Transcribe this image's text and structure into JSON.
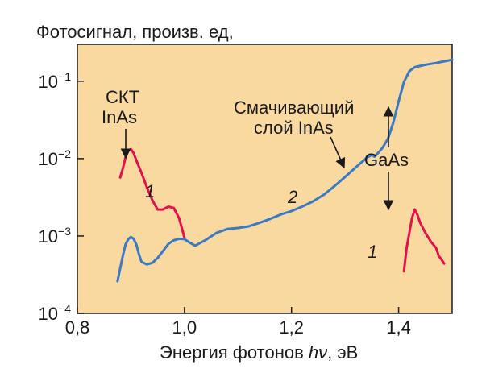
{
  "chart_data": {
    "type": "line",
    "title": "",
    "ylabel": "Фотосигнал, произв. ед,",
    "xlabel": {
      "prefix": "Энергия фотонов ",
      "symbol": "hν",
      "suffix": ", эВ"
    },
    "xlim": [
      0.8,
      1.5
    ],
    "ylim": [
      0.0001,
      0.3
    ],
    "yscale": "log",
    "grid": false,
    "x_ticks": [
      {
        "value": 0.8,
        "label": "0,8"
      },
      {
        "value": 1.0,
        "label": "1,0"
      },
      {
        "value": 1.2,
        "label": "1,2"
      },
      {
        "value": 1.4,
        "label": "1,4"
      }
    ],
    "y_ticks": [
      {
        "value": 0.0001,
        "base": "10",
        "exp": "−4"
      },
      {
        "value": 0.001,
        "base": "10",
        "exp": "−3"
      },
      {
        "value": 0.01,
        "base": "10",
        "exp": "−2"
      },
      {
        "value": 0.1,
        "base": "10",
        "exp": "−1"
      }
    ],
    "colors": {
      "background": "#f9d9a0",
      "series_1": "#e5124a",
      "series_2": "#3a7ac4",
      "axis": "#1a1a1a"
    },
    "series": [
      {
        "name": "1",
        "x": [
          0.88,
          0.885,
          0.89,
          0.895,
          0.9,
          0.905,
          0.91,
          0.92,
          0.93,
          0.94,
          0.95,
          0.96,
          0.97,
          0.98,
          0.99,
          1.0
        ],
        "y": [
          0.0057,
          0.0075,
          0.0105,
          0.0128,
          0.0132,
          0.0118,
          0.0095,
          0.0065,
          0.0042,
          0.0029,
          0.0022,
          0.0022,
          0.0024,
          0.0023,
          0.0017,
          0.00095
        ]
      },
      {
        "name": "1",
        "x": [
          1.41,
          1.415,
          1.42,
          1.425,
          1.43,
          1.435,
          1.44,
          1.45,
          1.46,
          1.47,
          1.475,
          1.48,
          1.485
        ],
        "y": [
          0.00035,
          0.0007,
          0.0011,
          0.0017,
          0.0022,
          0.0019,
          0.0015,
          0.0011,
          0.00085,
          0.0007,
          0.00055,
          0.0005,
          0.00044
        ]
      },
      {
        "name": "2",
        "x": [
          0.875,
          0.88,
          0.885,
          0.89,
          0.895,
          0.9,
          0.905,
          0.91,
          0.915,
          0.92,
          0.93,
          0.94,
          0.95,
          0.96,
          0.97,
          0.98,
          0.99,
          1.0,
          1.01,
          1.02,
          1.04,
          1.06,
          1.08,
          1.1,
          1.12,
          1.14,
          1.16,
          1.18,
          1.2,
          1.22,
          1.24,
          1.26,
          1.28,
          1.3,
          1.32,
          1.34,
          1.35,
          1.355,
          1.36,
          1.37,
          1.38,
          1.39,
          1.4,
          1.41,
          1.42,
          1.43,
          1.45,
          1.47,
          1.5
        ],
        "y": [
          0.00026,
          0.00038,
          0.00056,
          0.00078,
          0.00091,
          0.00097,
          0.00092,
          0.00078,
          0.00058,
          0.00046,
          0.00043,
          0.00045,
          0.00052,
          0.00064,
          0.00079,
          0.00088,
          0.00092,
          0.00091,
          0.00082,
          0.00075,
          0.00089,
          0.0011,
          0.00123,
          0.00127,
          0.00133,
          0.00148,
          0.00166,
          0.0019,
          0.0021,
          0.0024,
          0.0028,
          0.0034,
          0.0044,
          0.0058,
          0.0077,
          0.0102,
          0.0112,
          0.0106,
          0.0115,
          0.0138,
          0.018,
          0.029,
          0.055,
          0.098,
          0.135,
          0.152,
          0.163,
          0.172,
          0.19
        ]
      }
    ],
    "annotations": [
      {
        "lines": [
          "СКТ",
          "InAs"
        ]
      },
      {
        "lines": [
          "Смачивающий",
          "слой InAs"
        ]
      },
      {
        "lines": [
          "GaAs"
        ]
      }
    ]
  }
}
